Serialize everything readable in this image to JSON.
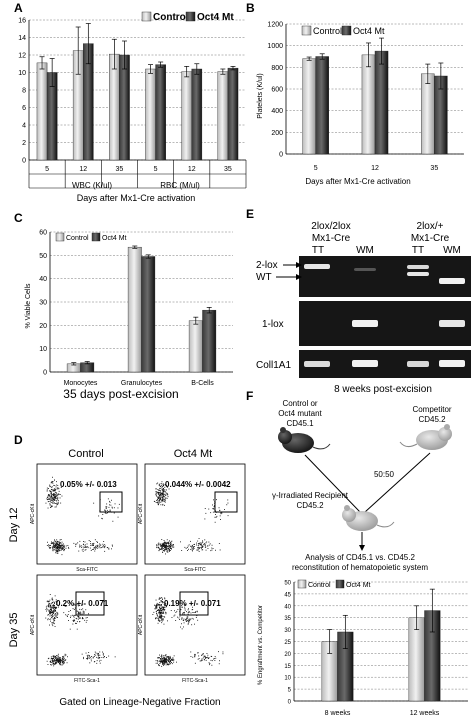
{
  "panels": {
    "A": {
      "letter": "A",
      "xlabel": "Days after Mx1-Cre activation",
      "group_labels": [
        "WBC (K/ul)",
        "RBC (M/ul)"
      ],
      "legend": [
        "Control",
        "Oct4 Mt"
      ]
    },
    "B": {
      "letter": "B",
      "xlabel": "Days after Mx1-Cre activation",
      "ylabel": "Platelets (K/ul)",
      "legend": [
        "Control",
        "Oct4 Mt"
      ]
    },
    "C": {
      "letter": "C",
      "xlabel": "35 days post-excision",
      "ylabel": "% Viable Cells",
      "legend": [
        "Control",
        "Oct4 Mt"
      ]
    },
    "D": {
      "letter": "D",
      "col_labels": [
        "Control",
        "Oct4 Mt"
      ],
      "row_labels": [
        "Day 12",
        "Day 35"
      ],
      "gates": [
        "0.05% +/- 0.013",
        "0.044% +/- 0.0042",
        "0.2% +/- 0.071",
        "0.19% +/- 0.071"
      ],
      "xaxis": [
        "Sca-FITC",
        "Sca-FITC",
        "FITC-Sca-1",
        "FITC-Sca-1"
      ],
      "yaxis": "APC-cKit",
      "caption": "Gated on Lineage-Negative Fraction"
    },
    "E": {
      "letter": "E",
      "genotypes": [
        "2lox/2lox\nMx1-Cre",
        "2lox/+\nMx1-Cre"
      ],
      "lanes": [
        "TT",
        "WM",
        "TT",
        "WM"
      ],
      "rows": [
        "2-lox",
        "WT",
        "1-lox",
        "Coll1A1"
      ],
      "caption": "8 weeks post-excision"
    },
    "F": {
      "letter": "F",
      "donor": "Control or\nOct4 mutant\nCD45.1",
      "competitor": "Competitor\nCD45.2",
      "ratio": "50:50",
      "recipient": "γ-Irradiated Recipient\nCD45.2",
      "analysis": "Analysis of CD45.1 vs. CD45.2\nreconstitution of hematopoietic system",
      "ylabel": "% Engraftment vs. Competitor",
      "legend": [
        "Control",
        "Oct4 Mt"
      ]
    }
  },
  "chart_data": [
    {
      "panel": "A",
      "type": "bar",
      "categories": [
        "5",
        "12",
        "35",
        "5",
        "12",
        "35"
      ],
      "groups": [
        "WBC (K/ul)",
        "RBC (M/ul)"
      ],
      "series": [
        {
          "name": "Control",
          "values": [
            11.1,
            12.5,
            12.1,
            10.4,
            10.1,
            10.1
          ],
          "errors": [
            0.7,
            2.7,
            1.7,
            0.5,
            0.6,
            0.3
          ]
        },
        {
          "name": "Oct4 Mt",
          "values": [
            10.0,
            13.3,
            12.0,
            10.9,
            10.4,
            10.5
          ],
          "errors": [
            1.6,
            2.3,
            1.6,
            0.3,
            0.6,
            0.2
          ]
        }
      ],
      "ylim": [
        0,
        16
      ],
      "yticks": [
        0,
        2,
        4,
        6,
        8,
        10,
        12,
        14,
        16
      ],
      "xlabel": "Days after Mx1-Cre activation",
      "grid": true,
      "legend": "top-right"
    },
    {
      "panel": "B",
      "type": "bar",
      "categories": [
        "5",
        "12",
        "35"
      ],
      "series": [
        {
          "name": "Control",
          "values": [
            880,
            915,
            740
          ],
          "errors": [
            15,
            110,
            90
          ]
        },
        {
          "name": "Oct4 Mt",
          "values": [
            900,
            950,
            720
          ],
          "errors": [
            25,
            120,
            120
          ]
        }
      ],
      "ylim": [
        0,
        1200
      ],
      "yticks": [
        0,
        200,
        400,
        600,
        800,
        1000,
        1200
      ],
      "xlabel": "Days after Mx1-Cre activation",
      "ylabel": "Platelets (K/ul)",
      "grid": true,
      "legend": "top-left"
    },
    {
      "panel": "C",
      "type": "bar",
      "categories": [
        "Monocytes",
        "Granulocytes",
        "B-Cells"
      ],
      "series": [
        {
          "name": "Control",
          "values": [
            3.5,
            53.5,
            22.0
          ],
          "errors": [
            0.5,
            0.5,
            1.5
          ]
        },
        {
          "name": "Oct4 Mt",
          "values": [
            4.0,
            49.5,
            26.5
          ],
          "errors": [
            0.5,
            0.7,
            1.2
          ]
        }
      ],
      "ylim": [
        0,
        60
      ],
      "yticks": [
        0,
        10,
        20,
        30,
        40,
        50,
        60
      ],
      "xlabel": "35 days post-excision",
      "ylabel": "% Viable Cells",
      "grid": true,
      "legend": "top-left"
    },
    {
      "panel": "F",
      "type": "bar",
      "categories": [
        "8 weeks",
        "12 weeks"
      ],
      "series": [
        {
          "name": "Control",
          "values": [
            25,
            35
          ],
          "errors": [
            5,
            5
          ]
        },
        {
          "name": "Oct4 Mt",
          "values": [
            29,
            38
          ],
          "errors": [
            7,
            9
          ]
        }
      ],
      "ylim": [
        0,
        50
      ],
      "yticks": [
        0,
        5,
        10,
        15,
        20,
        25,
        30,
        35,
        40,
        45,
        50
      ],
      "ylabel": "% Engraftment vs. Competitor",
      "grid": true,
      "legend": "top-left"
    }
  ]
}
